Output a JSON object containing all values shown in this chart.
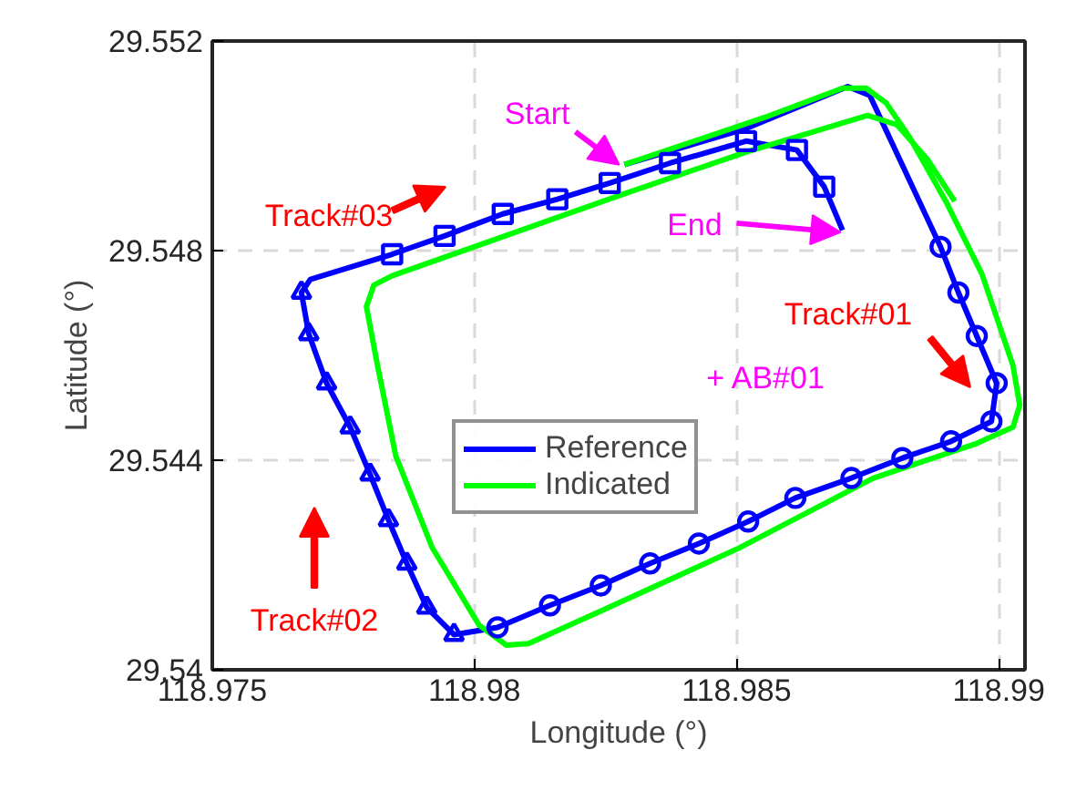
{
  "chart_data": {
    "type": "line",
    "xlabel": "Longitude (°)",
    "ylabel": "Latitude (°)",
    "xlim": [
      118.975,
      118.9905
    ],
    "ylim": [
      29.54,
      29.552
    ],
    "xticks": [
      118.975,
      118.98,
      118.985,
      118.99
    ],
    "yticks": [
      29.54,
      29.544,
      29.548,
      29.552
    ],
    "grid": true,
    "legend": "center",
    "line_style": "solid",
    "series": [
      {
        "name": "Reference",
        "color": "#0000ff",
        "marker": "none",
        "x": [
          118.98286,
          118.98518,
          118.98712,
          118.98754,
          118.98889,
          118.98923,
          118.98958,
          118.98996,
          118.98986,
          118.98909,
          118.98816,
          118.98719,
          118.98612,
          118.98522,
          118.98428,
          118.98335,
          118.98241,
          118.98144,
          118.98044,
          118.97961,
          118.97909,
          118.97871,
          118.97836,
          118.97801,
          118.97763,
          118.97718,
          118.97684,
          118.9767,
          118.97687,
          118.97843,
          118.97943,
          118.98054,
          118.98158,
          118.98258,
          118.98373,
          118.98518,
          118.98615,
          118.98667,
          118.98702
        ],
        "values": [
          29.54964,
          29.55033,
          29.55113,
          29.55096,
          29.54807,
          29.5472,
          29.54637,
          29.54547,
          29.54474,
          29.54436,
          29.54404,
          29.54366,
          29.54328,
          29.54283,
          29.54241,
          29.54203,
          29.54161,
          29.54123,
          29.54081,
          29.54067,
          29.54119,
          29.54203,
          29.54286,
          29.54373,
          29.54463,
          29.54547,
          29.54641,
          29.5472,
          29.54745,
          29.54793,
          29.54828,
          29.5487,
          29.54898,
          29.54929,
          29.54967,
          29.55009,
          29.54992,
          29.54922,
          29.54839
        ]
      },
      {
        "name": "Indicated",
        "color": "#00ff00",
        "marker": "none",
        "x": [
          118.98286,
          118.98553,
          118.98702,
          118.98747,
          118.98785,
          118.9883,
          118.98899,
          118.98968,
          118.99027,
          118.9904,
          118.99027,
          118.98958,
          118.98761,
          118.98508,
          118.98241,
          118.98103,
          118.98061,
          118.98009,
          118.97919,
          118.9785,
          118.97815,
          118.97794,
          118.97808,
          118.97843,
          118.98276,
          118.98518,
          118.9875,
          118.98806,
          118.98864,
          118.98916
        ],
        "values": [
          29.54964,
          29.55054,
          29.5511,
          29.5511,
          29.55082,
          29.55016,
          29.54894,
          29.54755,
          29.54581,
          29.54505,
          29.54463,
          29.54432,
          29.54366,
          29.54234,
          29.54112,
          29.5405,
          29.54047,
          29.54085,
          29.54234,
          29.54408,
          29.54581,
          29.54693,
          29.54734,
          29.54752,
          29.54905,
          29.54988,
          29.55058,
          29.5504,
          29.54974,
          29.54894
        ]
      },
      {
        "color": "#0000ff",
        "type": "scatter",
        "marker": "circle",
        "x": [
          118.98889,
          118.98923,
          118.98958,
          118.98996,
          118.98986,
          118.98909,
          118.98816,
          118.98719,
          118.98612,
          118.98522,
          118.98428,
          118.98335,
          118.98241,
          118.98144,
          118.98044
        ],
        "values": [
          29.54807,
          29.5472,
          29.54637,
          29.54547,
          29.54474,
          29.54436,
          29.54404,
          29.54366,
          29.54328,
          29.54283,
          29.54241,
          29.54203,
          29.54161,
          29.54123,
          29.54081
        ]
      },
      {
        "color": "#0000ff",
        "type": "scatter",
        "marker": "triangle",
        "x": [
          118.97961,
          118.97909,
          118.97871,
          118.97836,
          118.97801,
          118.97763,
          118.97718,
          118.97684,
          118.9767
        ],
        "values": [
          29.54067,
          29.54119,
          29.54203,
          29.54286,
          29.54373,
          29.54463,
          29.54547,
          29.54641,
          29.5472
        ]
      },
      {
        "color": "#0000ff",
        "type": "scatter",
        "marker": "square",
        "x": [
          118.97843,
          118.97943,
          118.98054,
          118.98158,
          118.98258,
          118.98373,
          118.98518,
          118.98615,
          118.98667
        ],
        "values": [
          29.54793,
          29.54828,
          29.5487,
          29.54898,
          29.54929,
          29.54967,
          29.55009,
          29.54992,
          29.54922
        ]
      }
    ],
    "annotations": [
      {
        "text": "Start",
        "x": 118.98276,
        "y": 29.54964
      },
      {
        "text": "End",
        "x": 118.98698,
        "y": 29.54835
      },
      "Track#03",
      "Track#01",
      "Track#02",
      "+ AB#01"
    ]
  }
}
